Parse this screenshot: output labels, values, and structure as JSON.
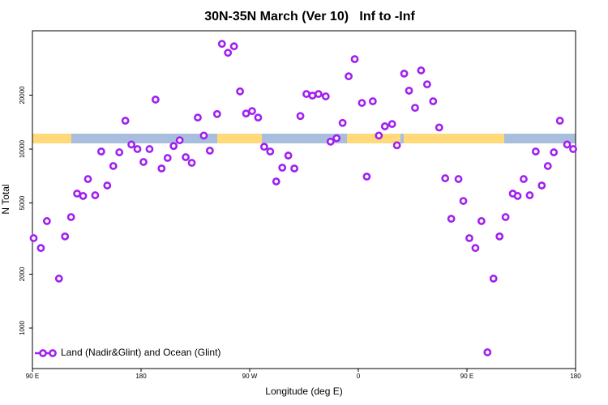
{
  "chart_data": {
    "type": "scatter",
    "title": "30N-35N March (Ver 10)   Inf to -Inf",
    "xlabel": "Longitude (deg E)",
    "ylabel": "N Total",
    "xlim": [
      90,
      540
    ],
    "xticks": [
      {
        "value": 90,
        "label": "90 E"
      },
      {
        "value": 180,
        "label": "180"
      },
      {
        "value": 270,
        "label": "90 W"
      },
      {
        "value": 360,
        "label": "0"
      },
      {
        "value": 450,
        "label": "90 E"
      },
      {
        "value": 540,
        "label": "180"
      }
    ],
    "ylim": [
      594,
      45800
    ],
    "yticks": [
      1000,
      2000,
      5000,
      10000,
      20000
    ],
    "ylog": true,
    "legend": "lower left",
    "series": [
      {
        "name": "Land (Nadir&Glint) and Ocean (Glint)",
        "color": "#a020f0",
        "x": [
          91,
          97,
          102,
          112,
          117,
          122,
          127,
          132,
          136,
          142,
          147,
          152,
          157,
          162,
          167,
          172,
          177,
          182,
          187,
          192,
          197,
          202,
          207,
          212,
          217,
          222,
          227,
          232,
          237,
          243,
          247,
          252,
          257,
          262,
          267,
          272,
          277,
          282,
          287,
          292,
          297,
          302,
          307,
          312,
          317,
          322,
          327,
          333,
          337,
          342,
          347,
          352,
          357,
          363,
          367,
          372,
          377,
          382,
          388,
          392,
          398,
          402,
          407,
          412,
          417,
          422,
          427,
          432,
          437,
          443,
          447,
          452,
          457,
          462,
          467,
          472,
          477,
          482,
          488,
          492,
          497,
          502,
          507,
          512,
          517,
          522,
          527,
          533,
          538
        ],
        "values": [
          3180,
          2800,
          3960,
          1890,
          3250,
          4170,
          5640,
          5470,
          6800,
          5520,
          9690,
          6260,
          8040,
          9590,
          14400,
          10600,
          10000,
          8470,
          10000,
          18900,
          7790,
          8920,
          10400,
          11200,
          9010,
          8380,
          15000,
          11900,
          9800,
          15700,
          38700,
          34500,
          37500,
          21000,
          15800,
          16300,
          15000,
          10300,
          9690,
          6590,
          7870,
          9200,
          7790,
          15300,
          20300,
          19900,
          20300,
          19700,
          11000,
          11500,
          14000,
          25500,
          31800,
          18100,
          7020,
          18500,
          11900,
          13400,
          13800,
          10500,
          26400,
          21200,
          17000,
          27500,
          23000,
          18500,
          13200,
          6870,
          4080,
          6800,
          5130,
          3180,
          2800,
          3960,
          732,
          1890,
          3250,
          4170,
          5640,
          5470,
          6800,
          5520,
          9690,
          6260,
          8040,
          9590,
          14400,
          10600,
          10000
        ]
      }
    ]
  }
}
